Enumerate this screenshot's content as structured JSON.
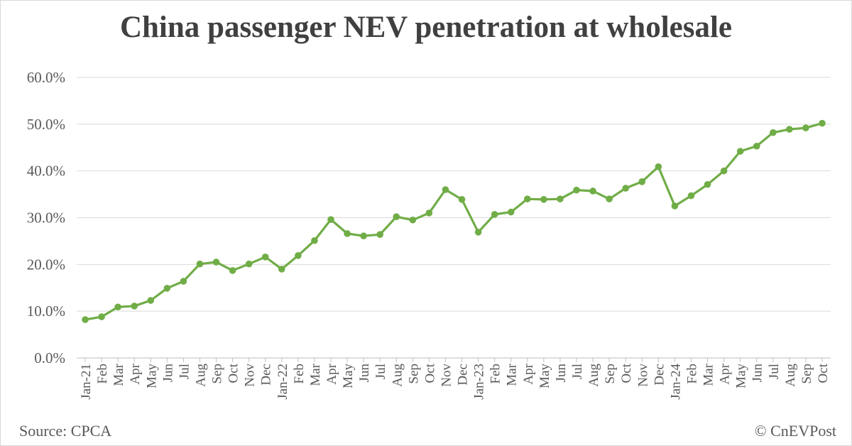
{
  "chart_data": {
    "type": "line",
    "title": "China passenger NEV penetration at wholesale",
    "xlabel": "",
    "ylabel": "",
    "ylim": [
      0,
      60
    ],
    "yticks": [
      "0.0%",
      "10.0%",
      "20.0%",
      "30.0%",
      "40.0%",
      "50.0%",
      "60.0%"
    ],
    "grid": true,
    "legend": "none",
    "line_color": "#70AD47",
    "categories": [
      "Jan-21",
      "Feb",
      "Mar",
      "Apr",
      "May",
      "Jun",
      "Jul",
      "Aug",
      "Sep",
      "Oct",
      "Nov",
      "Dec",
      "Jan-22",
      "Feb",
      "Mar",
      "Apr",
      "May",
      "Jun",
      "Jul",
      "Aug",
      "Sep",
      "Oct",
      "Nov",
      "Dec",
      "Jan-23",
      "Feb",
      "Mar",
      "Apr",
      "May",
      "Jun",
      "Jul",
      "Aug",
      "Sep",
      "Oct",
      "Nov",
      "Dec",
      "Jan-24",
      "Feb",
      "Mar",
      "Apr",
      "May",
      "Jun",
      "Jul",
      "Aug",
      "Sep",
      "Oct"
    ],
    "values": [
      8.2,
      8.8,
      10.9,
      11.1,
      12.3,
      14.9,
      16.4,
      20.1,
      20.5,
      18.7,
      20.1,
      21.6,
      19.0,
      21.9,
      25.1,
      29.6,
      26.6,
      26.1,
      26.4,
      30.2,
      29.5,
      31.0,
      36.0,
      33.9,
      26.9,
      30.7,
      31.2,
      34.0,
      33.9,
      34.0,
      35.9,
      35.7,
      34.0,
      36.3,
      37.7,
      40.9,
      32.5,
      34.7,
      37.1,
      40.0,
      44.2,
      45.3,
      48.2,
      48.9,
      49.2,
      50.2
    ]
  },
  "footer": {
    "source": "Source: CPCA",
    "credit": "© CnEVPost"
  }
}
